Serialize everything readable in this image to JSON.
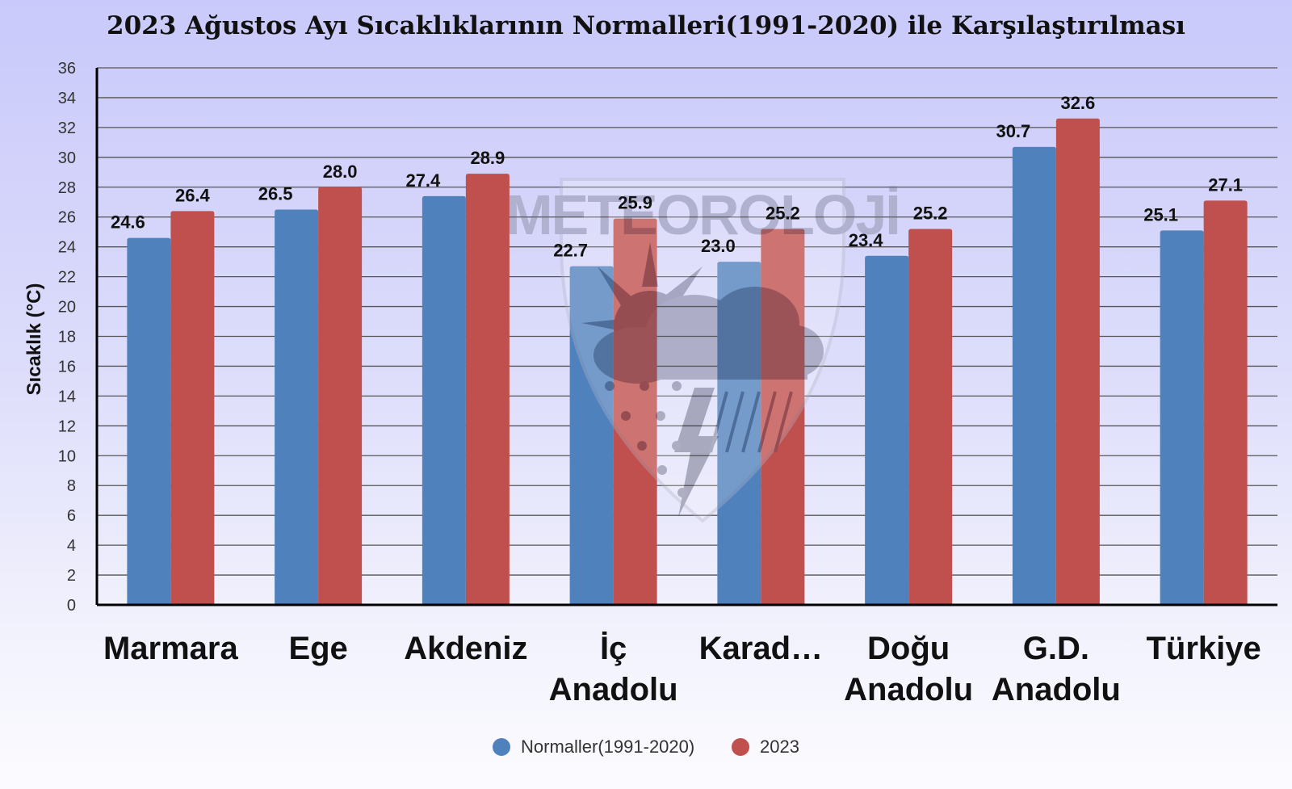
{
  "chart_data": {
    "type": "bar",
    "title": "2023 Ağustos Ayı Sıcaklıklarının Normalleri(1991-2020) ile Karşılaştırılması",
    "ylabel": "Sıcaklık (°C)",
    "xlabel": "",
    "ylim": [
      0,
      36
    ],
    "yticks": [
      0,
      2,
      4,
      6,
      8,
      10,
      12,
      14,
      16,
      18,
      20,
      22,
      24,
      26,
      28,
      30,
      32,
      34,
      36
    ],
    "categories": [
      [
        "Marmara"
      ],
      [
        "Ege"
      ],
      [
        "Akdeniz"
      ],
      [
        "İç",
        "Anadolu"
      ],
      [
        "Karad…"
      ],
      [
        "Doğu",
        "Anadolu"
      ],
      [
        "G.D.",
        "Anadolu"
      ],
      [
        "Türkiye"
      ]
    ],
    "series": [
      {
        "name": "Normaller(1991-2020)",
        "color": "#4f81bd",
        "values": [
          24.6,
          26.5,
          27.4,
          22.7,
          23.0,
          23.4,
          30.7,
          25.1
        ]
      },
      {
        "name": "2023",
        "color": "#c0504d",
        "values": [
          26.4,
          28.0,
          28.9,
          25.9,
          25.2,
          25.2,
          32.6,
          27.1
        ]
      }
    ],
    "grid": true,
    "legend_position": "bottom",
    "data_labels": true
  },
  "watermark": {
    "text": "METEOROLOJİ",
    "icon": "meteoroloji-shield-logo"
  }
}
